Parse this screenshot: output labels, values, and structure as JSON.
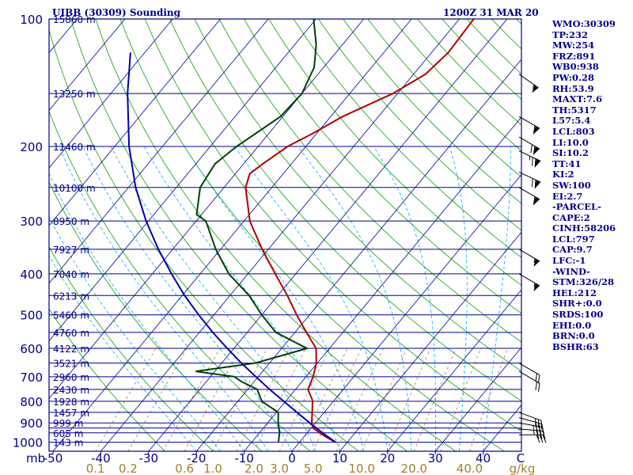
{
  "header": {
    "station": "UIBB (30309) Sounding",
    "time": "1200Z 31 MAR 20"
  },
  "stats": [
    "WMO:30309",
    "TP:232",
    "MW:254",
    "FRZ:891",
    "WB0:938",
    "PW:0.28",
    "RH:53.9",
    "MAXT:7.6",
    "TH:5317",
    "L57:5.4",
    "LCL:803",
    "LI:10.0",
    "SI:10.2",
    "TT:41",
    "KI:2",
    "SW:100",
    "EI:2.7",
    "-PARCEL-",
    "CAPE:2",
    "CINH:58206",
    "LCL:797",
    "CAP:9.7",
    "LFC:-1",
    "-WIND-",
    "STM:326/28",
    "HEL:212",
    "SHR+:0.0",
    "SRDS:100",
    "EHI:0.0",
    "BRN:0.0",
    "BSHR:63"
  ],
  "chart_data": {
    "type": "line",
    "chart_kind": "skew-T log-P",
    "pressure_ticks": [
      100,
      200,
      300,
      400,
      500,
      600,
      700,
      800,
      900,
      1000
    ],
    "pressure_tick_labels": [
      "100",
      "200",
      "300",
      "400",
      "500",
      "600",
      "700",
      "800",
      "900",
      "1000"
    ],
    "isobar_levels": [
      100,
      150,
      200,
      250,
      300,
      350,
      400,
      450,
      500,
      550,
      600,
      650,
      700,
      750,
      800,
      850,
      900,
      925,
      950,
      1000
    ],
    "height_labels": [
      {
        "p": 100,
        "label": "15860 m"
      },
      {
        "p": 150,
        "label": "13250 m"
      },
      {
        "p": 200,
        "label": "11460 m"
      },
      {
        "p": 250,
        "label": "10100 m"
      },
      {
        "p": 300,
        "label": "8950 m"
      },
      {
        "p": 350,
        "label": "7927 m"
      },
      {
        "p": 400,
        "label": "7040 m"
      },
      {
        "p": 450,
        "label": "6213 m"
      },
      {
        "p": 500,
        "label": "5460 m"
      },
      {
        "p": 550,
        "label": "4760 m"
      },
      {
        "p": 600,
        "label": "4122 m"
      },
      {
        "p": 650,
        "label": "3521 m"
      },
      {
        "p": 700,
        "label": "2960 m"
      },
      {
        "p": 750,
        "label": "2430 m"
      },
      {
        "p": 800,
        "label": "1928 m"
      },
      {
        "p": 850,
        "label": "1457 m"
      },
      {
        "p": 900,
        "label": "999 m"
      },
      {
        "p": 950,
        "label": "605 m"
      },
      {
        "p": 1000,
        "label": "143 m"
      }
    ],
    "x_axis_label": "mb",
    "temperature_ticks": [
      -50,
      -40,
      -30,
      -20,
      -10,
      0,
      10,
      20,
      30,
      40
    ],
    "temperature_tick_labels": [
      "-50",
      "-40",
      "-30",
      "-20",
      "-10",
      "0",
      "10",
      "20",
      "30",
      "40"
    ],
    "temperature_end_label": "C",
    "mixing_ratio_ticks": [
      0.1,
      0.2,
      0.6,
      1.0,
      2.0,
      3.0,
      5.0,
      10.0,
      20.0,
      40.0
    ],
    "mixing_ratio_tick_labels": [
      "0.1",
      "0.2",
      "0.6",
      "1.0",
      "2.0",
      "3.0",
      "5.0",
      "10.0",
      "20.0",
      "40.0"
    ],
    "mixing_ratio_unit": "g/kg",
    "series": [
      {
        "key": "temperature",
        "color": "#b00000",
        "points": [
          [
            1000,
            7.6
          ],
          [
            975,
            5.0
          ],
          [
            950,
            2.6
          ],
          [
            925,
            0.4
          ],
          [
            900,
            -0.8
          ],
          [
            850,
            -2.5
          ],
          [
            810,
            -4.0
          ],
          [
            800,
            -4.3
          ],
          [
            750,
            -7.4
          ],
          [
            700,
            -8.5
          ],
          [
            650,
            -10.2
          ],
          [
            600,
            -12.8
          ],
          [
            550,
            -17.6
          ],
          [
            500,
            -22.7
          ],
          [
            450,
            -28.0
          ],
          [
            400,
            -34.3
          ],
          [
            350,
            -41.3
          ],
          [
            300,
            -48.8
          ],
          [
            250,
            -55.5
          ],
          [
            232,
            -57.0
          ],
          [
            220,
            -56.0
          ],
          [
            200,
            -53.8
          ],
          [
            185,
            -50.5
          ],
          [
            170,
            -47.5
          ],
          [
            150,
            -41.0
          ],
          [
            135,
            -37.5
          ],
          [
            120,
            -36.5
          ],
          [
            100,
            -37.0
          ]
        ]
      },
      {
        "key": "dewpoint",
        "color": "#004000",
        "points": [
          [
            1000,
            -4.4
          ],
          [
            950,
            -5.8
          ],
          [
            900,
            -7.8
          ],
          [
            850,
            -9.6
          ],
          [
            800,
            -15.0
          ],
          [
            750,
            -18.0
          ],
          [
            720,
            -22.5
          ],
          [
            700,
            -25.0
          ],
          [
            680,
            -34.0
          ],
          [
            650,
            -23.0
          ],
          [
            600,
            -14.7
          ],
          [
            550,
            -24.0
          ],
          [
            500,
            -30.0
          ],
          [
            450,
            -36.0
          ],
          [
            400,
            -44.0
          ],
          [
            350,
            -51.0
          ],
          [
            300,
            -58.0
          ],
          [
            290,
            -61.0
          ],
          [
            250,
            -65.0
          ],
          [
            220,
            -66.0
          ],
          [
            200,
            -64.5
          ],
          [
            170,
            -60.5
          ],
          [
            150,
            -60.0
          ],
          [
            130,
            -62.0
          ],
          [
            115,
            -65.5
          ],
          [
            100,
            -70.5
          ]
        ]
      },
      {
        "key": "parcel",
        "color": "#0000b0",
        "points": [
          [
            1000,
            7.6
          ],
          [
            950,
            3.2
          ],
          [
            900,
            -1.2
          ],
          [
            850,
            -5.7
          ],
          [
            800,
            -10.4
          ],
          [
            750,
            -15.4
          ],
          [
            700,
            -20.5
          ],
          [
            650,
            -25.9
          ],
          [
            600,
            -31.4
          ],
          [
            550,
            -37.2
          ],
          [
            500,
            -43.2
          ],
          [
            450,
            -49.5
          ],
          [
            400,
            -56.0
          ],
          [
            350,
            -63.0
          ],
          [
            300,
            -70.5
          ],
          [
            250,
            -78.5
          ],
          [
            200,
            -87.0
          ],
          [
            150,
            -96.5
          ],
          [
            120,
            -103.0
          ]
        ]
      }
    ],
    "wind_barbs": [
      {
        "p": 850,
        "dir": 290,
        "speed": 30
      },
      {
        "p": 875,
        "dir": 285,
        "speed": 30
      },
      {
        "p": 900,
        "dir": 280,
        "speed": 35
      },
      {
        "p": 930,
        "dir": 275,
        "speed": 35
      },
      {
        "p": 960,
        "dir": 270,
        "speed": 30
      },
      {
        "p": 680,
        "dir": 300,
        "speed": 20
      },
      {
        "p": 650,
        "dir": 300,
        "speed": 20
      },
      {
        "p": 400,
        "dir": 300,
        "speed": 55
      },
      {
        "p": 350,
        "dir": 300,
        "speed": 55
      },
      {
        "p": 250,
        "dir": 300,
        "speed": 60
      },
      {
        "p": 230,
        "dir": 295,
        "speed": 70
      },
      {
        "p": 205,
        "dir": 295,
        "speed": 75
      },
      {
        "p": 190,
        "dir": 300,
        "speed": 70
      },
      {
        "p": 170,
        "dir": 300,
        "speed": 60
      },
      {
        "p": 135,
        "dir": 305,
        "speed": 55
      }
    ],
    "colors": {
      "frame": "#00008b",
      "isotherm": "#00008b",
      "dry_adiabat": "#22aa22",
      "moist_adiabat": "#00aaff",
      "mixing_ratio": "#996633"
    }
  }
}
